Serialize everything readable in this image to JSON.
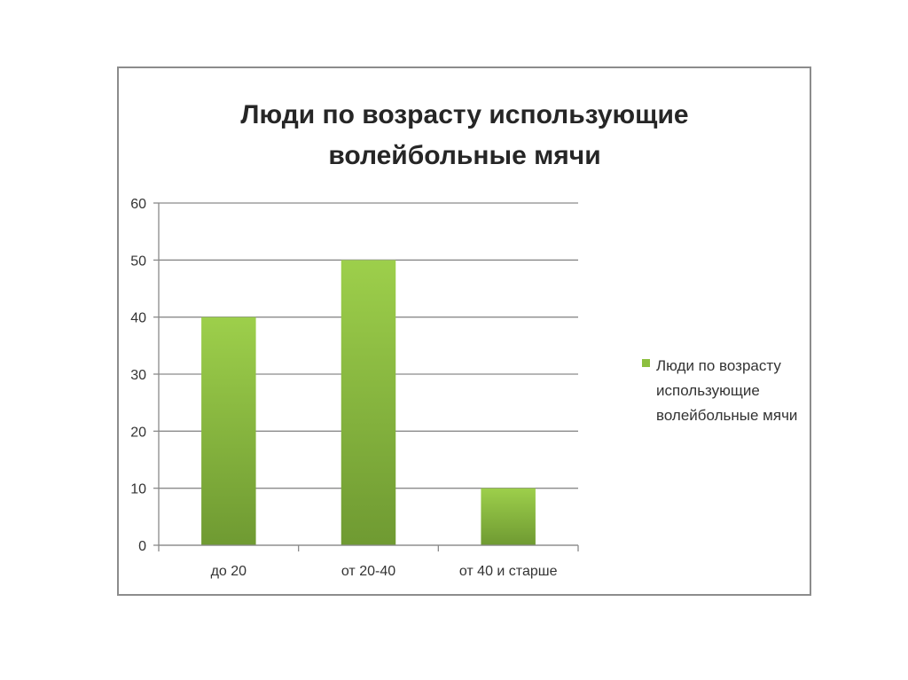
{
  "chart_data": {
    "type": "bar",
    "title_lines": [
      "Люди по возрасту использующие",
      "волейбольные мячи"
    ],
    "categories": [
      "до 20",
      "от 20-40",
      "от 40 и старше"
    ],
    "series": [
      {
        "name": "Люди по возрасту использующие волейбольные мячи",
        "values": [
          40,
          50,
          10
        ],
        "color": "#8cbf3f"
      }
    ],
    "yticks": [
      0,
      10,
      20,
      30,
      40,
      50,
      60
    ],
    "ylim": [
      0,
      60
    ],
    "grid": true,
    "legend_position": "right"
  }
}
